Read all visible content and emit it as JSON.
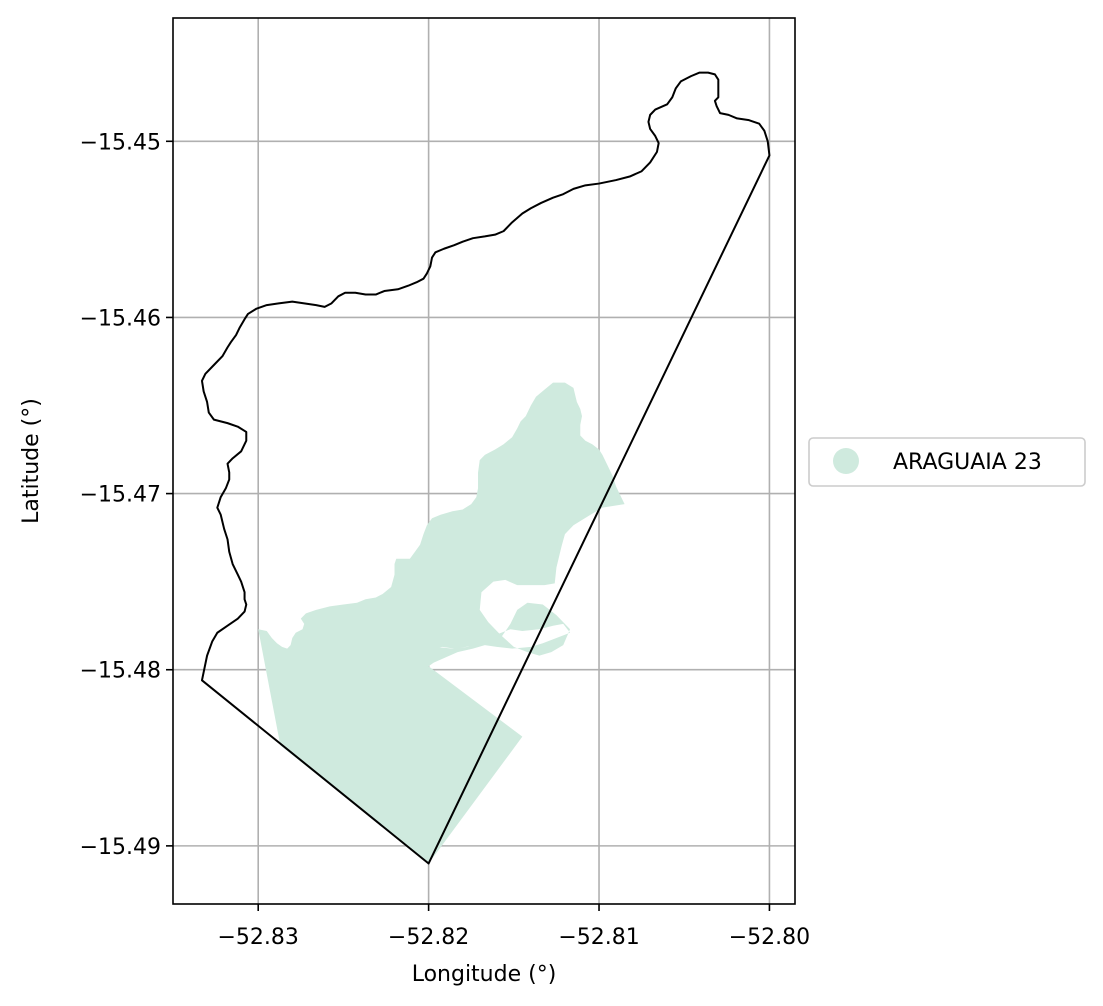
{
  "chart_data": {
    "type": "map",
    "xlabel": "Longitude (°)",
    "ylabel": "Latitude (°)",
    "xlim": [
      -52.835,
      -52.7985
    ],
    "ylim": [
      -15.4933,
      -15.443
    ],
    "grid": true,
    "x_ticks": [
      -52.83,
      -52.82,
      -52.81,
      -52.8
    ],
    "y_ticks": [
      -15.45,
      -15.46,
      -15.47,
      -15.48,
      -15.49
    ],
    "x_tick_labels": [
      "−52.83",
      "−52.82",
      "−52.81",
      "−52.80"
    ],
    "y_tick_labels": [
      "−15.45",
      "−15.46",
      "−15.47",
      "−15.48",
      "−15.49"
    ],
    "legend": {
      "placement": "center-right-outside",
      "entries": [
        {
          "label": "ARAGUAIA 23",
          "color": "#cfeade"
        }
      ]
    },
    "boundary": {
      "stroke": "#000000",
      "fill": "none",
      "coordinates": [
        [
          -52.82,
          -15.491
        ],
        [
          -52.8333,
          -15.4806
        ],
        [
          -52.833,
          -15.4792
        ],
        [
          -52.8327,
          -15.4784
        ],
        [
          -52.8324,
          -15.4779
        ],
        [
          -52.8318,
          -15.4775
        ],
        [
          -52.8312,
          -15.4771
        ],
        [
          -52.8308,
          -15.4767
        ],
        [
          -52.8307,
          -15.4763
        ],
        [
          -52.8308,
          -15.476
        ],
        [
          -52.8308,
          -15.4756
        ],
        [
          -52.831,
          -15.475
        ],
        [
          -52.8312,
          -15.4746
        ],
        [
          -52.8315,
          -15.474
        ],
        [
          -52.8317,
          -15.4733
        ],
        [
          -52.8318,
          -15.4726
        ],
        [
          -52.832,
          -15.472
        ],
        [
          -52.8322,
          -15.4712
        ],
        [
          -52.8324,
          -15.4708
        ],
        [
          -52.8322,
          -15.4702
        ],
        [
          -52.8319,
          -15.4697
        ],
        [
          -52.8317,
          -15.4692
        ],
        [
          -52.8317,
          -15.4688
        ],
        [
          -52.8318,
          -15.4683
        ],
        [
          -52.8315,
          -15.468
        ],
        [
          -52.831,
          -15.4676
        ],
        [
          -52.8307,
          -15.467
        ],
        [
          -52.8307,
          -15.4665
        ],
        [
          -52.8312,
          -15.4662
        ],
        [
          -52.8318,
          -15.466
        ],
        [
          -52.8326,
          -15.4658
        ],
        [
          -52.8329,
          -15.4654
        ],
        [
          -52.833,
          -15.4648
        ],
        [
          -52.8332,
          -15.4642
        ],
        [
          -52.8333,
          -15.4636
        ],
        [
          -52.8331,
          -15.4632
        ],
        [
          -52.8326,
          -15.4627
        ],
        [
          -52.8321,
          -15.4622
        ],
        [
          -52.8318,
          -15.4617
        ],
        [
          -52.8316,
          -15.4614
        ],
        [
          -52.8313,
          -15.461
        ],
        [
          -52.8311,
          -15.4606
        ],
        [
          -52.8308,
          -15.4601
        ],
        [
          -52.8306,
          -15.4598
        ],
        [
          -52.8301,
          -15.4595
        ],
        [
          -52.8295,
          -15.4593
        ],
        [
          -52.8288,
          -15.4592
        ],
        [
          -52.828,
          -15.4591
        ],
        [
          -52.8273,
          -15.4592
        ],
        [
          -52.8266,
          -15.4593
        ],
        [
          -52.8261,
          -15.4594
        ],
        [
          -52.8257,
          -15.4592
        ],
        [
          -52.8253,
          -15.4588
        ],
        [
          -52.8249,
          -15.4586
        ],
        [
          -52.8243,
          -15.4586
        ],
        [
          -52.8237,
          -15.4587
        ],
        [
          -52.8231,
          -15.4587
        ],
        [
          -52.8226,
          -15.4585
        ],
        [
          -52.8218,
          -15.4584
        ],
        [
          -52.8212,
          -15.4582
        ],
        [
          -52.8207,
          -15.458
        ],
        [
          -52.8203,
          -15.4578
        ],
        [
          -52.8201,
          -15.4575
        ],
        [
          -52.8199,
          -15.4571
        ],
        [
          -52.8198,
          -15.4566
        ],
        [
          -52.8196,
          -15.4563
        ],
        [
          -52.8191,
          -15.4561
        ],
        [
          -52.8185,
          -15.4559
        ],
        [
          -52.818,
          -15.4557
        ],
        [
          -52.8174,
          -15.4555
        ],
        [
          -52.8167,
          -15.4554
        ],
        [
          -52.8161,
          -15.4553
        ],
        [
          -52.8156,
          -15.4551
        ],
        [
          -52.8151,
          -15.4546
        ],
        [
          -52.8145,
          -15.4541
        ],
        [
          -52.814,
          -15.4538
        ],
        [
          -52.8134,
          -15.4535
        ],
        [
          -52.8127,
          -15.4532
        ],
        [
          -52.8121,
          -15.453
        ],
        [
          -52.8115,
          -15.4527
        ],
        [
          -52.8108,
          -15.4525
        ],
        [
          -52.81,
          -15.4524
        ],
        [
          -52.809,
          -15.4522
        ],
        [
          -52.8082,
          -15.452
        ],
        [
          -52.8075,
          -15.4517
        ],
        [
          -52.807,
          -15.4512
        ],
        [
          -52.8066,
          -15.4506
        ],
        [
          -52.8065,
          -15.4501
        ],
        [
          -52.8067,
          -15.4497
        ],
        [
          -52.807,
          -15.4493
        ],
        [
          -52.8071,
          -15.4489
        ],
        [
          -52.807,
          -15.4485
        ],
        [
          -52.8067,
          -15.4482
        ],
        [
          -52.806,
          -15.4479
        ],
        [
          -52.8057,
          -15.4475
        ],
        [
          -52.8055,
          -15.447
        ],
        [
          -52.8052,
          -15.4466
        ],
        [
          -52.8046,
          -15.4463
        ],
        [
          -52.8041,
          -15.4461
        ],
        [
          -52.8036,
          -15.4461
        ],
        [
          -52.8032,
          -15.4462
        ],
        [
          -52.803,
          -15.4465
        ],
        [
          -52.803,
          -15.447
        ],
        [
          -52.803,
          -15.4475
        ],
        [
          -52.8032,
          -15.4477
        ],
        [
          -52.8031,
          -15.448
        ],
        [
          -52.8029,
          -15.4484
        ],
        [
          -52.8024,
          -15.4485
        ],
        [
          -52.8019,
          -15.4487
        ],
        [
          -52.8012,
          -15.4488
        ],
        [
          -52.8006,
          -15.449
        ],
        [
          -52.8003,
          -15.4494
        ],
        [
          -52.8001,
          -15.45
        ],
        [
          -52.8,
          -15.4508
        ],
        [
          -52.82,
          -15.491
        ]
      ]
    },
    "fill_region": {
      "name": "ARAGUAIA 23",
      "color": "#cfeade",
      "coordinates": [
        [
          -52.83,
          -15.4777
        ],
        [
          -52.8295,
          -15.4778
        ],
        [
          -52.8292,
          -15.4782
        ],
        [
          -52.8289,
          -15.4785
        ],
        [
          -52.8286,
          -15.4787
        ],
        [
          -52.8283,
          -15.4788
        ],
        [
          -52.8281,
          -15.4786
        ],
        [
          -52.828,
          -15.4782
        ],
        [
          -52.8278,
          -15.4779
        ],
        [
          -52.8274,
          -15.4777
        ],
        [
          -52.8273,
          -15.4774
        ],
        [
          -52.8275,
          -15.4771
        ],
        [
          -52.8272,
          -15.4768
        ],
        [
          -52.8266,
          -15.4766
        ],
        [
          -52.8258,
          -15.4764
        ],
        [
          -52.825,
          -15.4763
        ],
        [
          -52.8242,
          -15.4762
        ],
        [
          -52.8237,
          -15.476
        ],
        [
          -52.8231,
          -15.4759
        ],
        [
          -52.8227,
          -15.4757
        ],
        [
          -52.8222,
          -15.4753
        ],
        [
          -52.822,
          -15.4746
        ],
        [
          -52.822,
          -15.474
        ],
        [
          -52.8219,
          -15.4737
        ],
        [
          -52.8215,
          -15.4737
        ],
        [
          -52.8211,
          -15.4737
        ],
        [
          -52.8208,
          -15.4733
        ],
        [
          -52.8205,
          -15.4729
        ],
        [
          -52.8203,
          -15.4723
        ],
        [
          -52.8201,
          -15.4718
        ],
        [
          -52.8198,
          -15.4714
        ],
        [
          -52.8193,
          -15.4712
        ],
        [
          -52.8186,
          -15.471
        ],
        [
          -52.818,
          -15.4709
        ],
        [
          -52.8175,
          -15.4706
        ],
        [
          -52.8172,
          -15.4702
        ],
        [
          -52.8171,
          -15.4697
        ],
        [
          -52.8171,
          -15.4688
        ],
        [
          -52.817,
          -15.4681
        ],
        [
          -52.8167,
          -15.4678
        ],
        [
          -52.8161,
          -15.4675
        ],
        [
          -52.8156,
          -15.4672
        ],
        [
          -52.8151,
          -15.4668
        ],
        [
          -52.8148,
          -15.4663
        ],
        [
          -52.8146,
          -15.4659
        ],
        [
          -52.8143,
          -15.4656
        ],
        [
          -52.814,
          -15.465
        ],
        [
          -52.8137,
          -15.4645
        ],
        [
          -52.8132,
          -15.4641
        ],
        [
          -52.8127,
          -15.4637
        ],
        [
          -52.812,
          -15.4637
        ],
        [
          -52.8115,
          -15.464
        ],
        [
          -52.8114,
          -15.4644
        ],
        [
          -52.8113,
          -15.4648
        ],
        [
          -52.8111,
          -15.4652
        ],
        [
          -52.811,
          -15.4656
        ],
        [
          -52.8111,
          -15.4661
        ],
        [
          -52.8111,
          -15.4664
        ],
        [
          -52.8111,
          -15.4667
        ],
        [
          -52.8108,
          -15.467
        ],
        [
          -52.8104,
          -15.4672
        ],
        [
          -52.81,
          -15.4675
        ],
        [
          -52.8098,
          -15.4678
        ],
        [
          -52.8095,
          -15.4684
        ],
        [
          -52.8092,
          -15.469
        ],
        [
          -52.809,
          -15.4696
        ],
        [
          -52.8087,
          -15.4702
        ],
        [
          -52.8085,
          -15.4706
        ],
        [
          -52.8098,
          -15.4708
        ],
        [
          -52.8105,
          -15.4712
        ],
        [
          -52.8115,
          -15.4718
        ],
        [
          -52.812,
          -15.4723
        ],
        [
          -52.8122,
          -15.473
        ],
        [
          -52.8125,
          -15.4742
        ],
        [
          -52.8126,
          -15.4751
        ],
        [
          -52.8132,
          -15.4752
        ],
        [
          -52.814,
          -15.4752
        ],
        [
          -52.8148,
          -15.4752
        ],
        [
          -52.8155,
          -15.4749
        ],
        [
          -52.8162,
          -15.475
        ],
        [
          -52.8169,
          -15.4756
        ],
        [
          -52.817,
          -15.4766
        ],
        [
          -52.8165,
          -15.4773
        ],
        [
          -52.8158,
          -15.478
        ],
        [
          -52.815,
          -15.4787
        ],
        [
          -52.8142,
          -15.479
        ],
        [
          -52.8135,
          -15.4792
        ],
        [
          -52.8128,
          -15.479
        ],
        [
          -52.8121,
          -15.4786
        ],
        [
          -52.8117,
          -15.4777
        ],
        [
          -52.8125,
          -15.4769
        ],
        [
          -52.8133,
          -15.4763
        ],
        [
          -52.8142,
          -15.4762
        ],
        [
          -52.8148,
          -15.4766
        ],
        [
          -52.8152,
          -15.4774
        ],
        [
          -52.8157,
          -15.4781
        ],
        [
          -52.8162,
          -15.4786
        ],
        [
          -52.817,
          -15.4786
        ],
        [
          -52.8178,
          -15.4787
        ],
        [
          -52.8185,
          -15.4788
        ],
        [
          -52.8192,
          -15.4787
        ],
        [
          -52.8198,
          -15.4788
        ],
        [
          -52.8203,
          -15.4791
        ],
        [
          -52.8206,
          -15.4794
        ],
        [
          -52.8209,
          -15.4797
        ],
        [
          -52.8212,
          -15.4798
        ],
        [
          -52.8216,
          -15.4797
        ],
        [
          -52.8219,
          -15.4794
        ],
        [
          -52.822,
          -15.4792
        ],
        [
          -52.8212,
          -15.4789
        ],
        [
          -52.8204,
          -15.4788
        ],
        [
          -52.8196,
          -15.4787
        ],
        [
          -52.8186,
          -15.4788
        ],
        [
          -52.8177,
          -15.4787
        ],
        [
          -52.8168,
          -15.4785
        ],
        [
          -52.816,
          -15.478
        ],
        [
          -52.8152,
          -15.4777
        ],
        [
          -52.8145,
          -15.4778
        ],
        [
          -52.8135,
          -15.4777
        ],
        [
          -52.8127,
          -15.4775
        ],
        [
          -52.8121,
          -15.4774
        ],
        [
          -52.8117,
          -15.4779
        ],
        [
          -52.8133,
          -15.4785
        ],
        [
          -52.814,
          -15.4787
        ],
        [
          -52.8151,
          -15.4788
        ],
        [
          -52.816,
          -15.4787
        ],
        [
          -52.8167,
          -15.4786
        ],
        [
          -52.8174,
          -15.4788
        ],
        [
          -52.8183,
          -15.479
        ],
        [
          -52.819,
          -15.4793
        ],
        [
          -52.8197,
          -15.4796
        ],
        [
          -52.82,
          -15.4798
        ],
        [
          -52.8145,
          -15.4838
        ],
        [
          -52.82,
          -15.491
        ],
        [
          -52.8287,
          -15.4843
        ],
        [
          -52.83,
          -15.4777
        ]
      ]
    }
  }
}
